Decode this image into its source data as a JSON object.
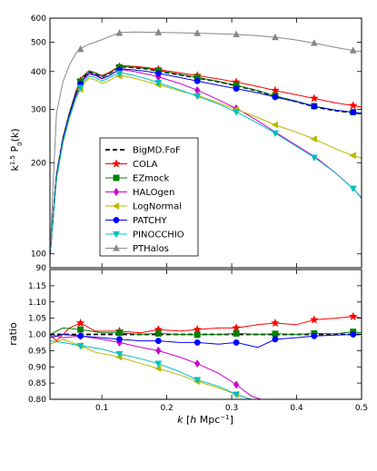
{
  "chart_data": [
    {
      "type": "line",
      "panel": "top",
      "title": "",
      "ylabel": "k^{1.5} P_0(k)",
      "xlabel": "",
      "xlim": [
        0.02,
        0.5
      ],
      "ylim": [
        90,
        600
      ],
      "yscale": "log",
      "yticks": [
        "90",
        "100",
        "200",
        "300",
        "400",
        "500",
        "600"
      ],
      "legend": {
        "placement": "lower-left",
        "entries": [
          "BigMD.FoF",
          "COLA",
          "EZmock",
          "HALOgen",
          "LogNormal",
          "PATCHY",
          "PINOCCHIO",
          "PTHalos"
        ]
      },
      "series": [
        {
          "name": "BigMD.FoF",
          "color": "#000000",
          "dash": "dashed",
          "marker": "none",
          "x": [
            0.02,
            0.03,
            0.04,
            0.05,
            0.06,
            0.07,
            0.08,
            0.09,
            0.1,
            0.11,
            0.12,
            0.13,
            0.15,
            0.17,
            0.19,
            0.22,
            0.25,
            0.28,
            0.31,
            0.34,
            0.37,
            0.4,
            0.43,
            0.46,
            0.49,
            0.5
          ],
          "y": [
            100,
            180,
            240,
            290,
            340,
            380,
            400,
            395,
            385,
            392,
            405,
            415,
            412,
            408,
            400,
            390,
            380,
            370,
            358,
            345,
            330,
            318,
            305,
            297,
            292,
            290
          ]
        },
        {
          "name": "COLA",
          "color": "#ff0000",
          "dash": "solid",
          "marker": "star",
          "x": [
            0.02,
            0.03,
            0.04,
            0.05,
            0.06,
            0.07,
            0.08,
            0.09,
            0.1,
            0.11,
            0.12,
            0.13,
            0.15,
            0.17,
            0.19,
            0.22,
            0.25,
            0.28,
            0.31,
            0.34,
            0.37,
            0.4,
            0.43,
            0.46,
            0.49,
            0.5
          ],
          "y": [
            100,
            182,
            242,
            292,
            345,
            385,
            402,
            396,
            388,
            396,
            408,
            418,
            416,
            412,
            405,
            396,
            387,
            378,
            368,
            357,
            345,
            335,
            325,
            315,
            308,
            305
          ],
          "marker_x": [
            0.067,
            0.127,
            0.187,
            0.247,
            0.307,
            0.367,
            0.427,
            0.487
          ]
        },
        {
          "name": "EZmock",
          "color": "#008000",
          "dash": "solid",
          "marker": "square",
          "x": [
            0.02,
            0.03,
            0.04,
            0.05,
            0.06,
            0.07,
            0.08,
            0.09,
            0.1,
            0.11,
            0.12,
            0.13,
            0.15,
            0.17,
            0.19,
            0.22,
            0.25,
            0.28,
            0.31,
            0.34,
            0.37,
            0.4,
            0.43,
            0.46,
            0.49,
            0.5
          ],
          "y": [
            100,
            181,
            241,
            291,
            342,
            383,
            402,
            396,
            386,
            393,
            406,
            416,
            413,
            409,
            402,
            392,
            381,
            371,
            359,
            346,
            331,
            319,
            306,
            298,
            293,
            291
          ],
          "marker_x": [
            0.067,
            0.127,
            0.187,
            0.247,
            0.307,
            0.367,
            0.427,
            0.487
          ]
        },
        {
          "name": "HALOgen",
          "color": "#cc00cc",
          "dash": "solid",
          "marker": "diamond",
          "x": [
            0.02,
            0.03,
            0.04,
            0.05,
            0.06,
            0.07,
            0.08,
            0.09,
            0.1,
            0.11,
            0.12,
            0.13,
            0.15,
            0.17,
            0.19,
            0.22,
            0.25,
            0.28,
            0.31,
            0.34,
            0.37,
            0.4,
            0.43,
            0.46,
            0.49,
            0.5
          ],
          "y": [
            100,
            178,
            237,
            285,
            333,
            372,
            392,
            388,
            378,
            386,
            398,
            406,
            400,
            392,
            382,
            365,
            345,
            322,
            300,
            275,
            250,
            228,
            208,
            185,
            162,
            153
          ],
          "marker_x": [
            0.067,
            0.127,
            0.187,
            0.247,
            0.307
          ]
        },
        {
          "name": "LogNormal",
          "color": "#b8b800",
          "dash": "solid",
          "marker": "triangle-left",
          "x": [
            0.02,
            0.03,
            0.04,
            0.05,
            0.06,
            0.07,
            0.08,
            0.09,
            0.1,
            0.11,
            0.12,
            0.13,
            0.15,
            0.17,
            0.19,
            0.22,
            0.25,
            0.28,
            0.31,
            0.34,
            0.37,
            0.4,
            0.43,
            0.46,
            0.49,
            0.5
          ],
          "y": [
            100,
            176,
            232,
            280,
            325,
            360,
            380,
            375,
            365,
            372,
            383,
            388,
            380,
            370,
            360,
            345,
            332,
            315,
            298,
            282,
            265,
            252,
            238,
            222,
            210,
            207
          ],
          "marker_x": [
            0.067,
            0.127,
            0.187,
            0.247,
            0.307,
            0.367,
            0.427,
            0.487
          ]
        },
        {
          "name": "PATCHY",
          "color": "#0000ff",
          "dash": "solid",
          "marker": "circle",
          "x": [
            0.02,
            0.03,
            0.04,
            0.05,
            0.06,
            0.07,
            0.08,
            0.09,
            0.1,
            0.11,
            0.12,
            0.13,
            0.15,
            0.17,
            0.19,
            0.22,
            0.25,
            0.28,
            0.31,
            0.34,
            0.37,
            0.4,
            0.43,
            0.46,
            0.49,
            0.5
          ],
          "y": [
            100,
            179,
            239,
            288,
            337,
            375,
            396,
            390,
            380,
            386,
            398,
            408,
            405,
            400,
            393,
            382,
            371,
            360,
            350,
            340,
            328,
            318,
            306,
            298,
            293,
            291
          ],
          "marker_x": [
            0.067,
            0.127,
            0.187,
            0.247,
            0.307,
            0.367,
            0.427,
            0.487
          ]
        },
        {
          "name": "PINOCCHIO",
          "color": "#00bfbf",
          "dash": "solid",
          "marker": "triangle-down",
          "x": [
            0.02,
            0.03,
            0.04,
            0.05,
            0.06,
            0.07,
            0.08,
            0.09,
            0.1,
            0.11,
            0.12,
            0.13,
            0.15,
            0.17,
            0.19,
            0.22,
            0.25,
            0.28,
            0.31,
            0.34,
            0.37,
            0.4,
            0.43,
            0.46,
            0.49,
            0.5
          ],
          "y": [
            100,
            177,
            234,
            282,
            328,
            365,
            386,
            382,
            372,
            380,
            390,
            396,
            388,
            378,
            365,
            348,
            330,
            312,
            292,
            270,
            248,
            226,
            206,
            185,
            162,
            152
          ],
          "marker_x": [
            0.067,
            0.127,
            0.187,
            0.247,
            0.307,
            0.367,
            0.427,
            0.487
          ]
        },
        {
          "name": "PTHalos",
          "color": "#888888",
          "dash": "solid",
          "marker": "triangle-up",
          "x": [
            0.02,
            0.03,
            0.04,
            0.05,
            0.06,
            0.07,
            0.08,
            0.09,
            0.1,
            0.11,
            0.12,
            0.13,
            0.15,
            0.17,
            0.19,
            0.22,
            0.25,
            0.28,
            0.31,
            0.34,
            0.37,
            0.4,
            0.43,
            0.46,
            0.49,
            0.5
          ],
          "y": [
            100,
            290,
            370,
            420,
            460,
            480,
            492,
            500,
            510,
            520,
            530,
            538,
            540,
            539,
            538,
            537,
            535,
            533,
            530,
            525,
            518,
            508,
            495,
            480,
            468,
            465
          ],
          "marker_x": [
            0.067,
            0.127,
            0.187,
            0.247,
            0.307,
            0.367,
            0.427,
            0.487
          ]
        }
      ]
    },
    {
      "type": "line",
      "panel": "bottom",
      "title": "",
      "ylabel": "ratio",
      "xlabel": "k [h Mpc^{-1}]",
      "xlim": [
        0.02,
        0.5
      ],
      "ylim": [
        0.8,
        1.2
      ],
      "yticks": [
        "0.80",
        "0.85",
        "0.90",
        "0.95",
        "1.00",
        "1.05",
        "1.10",
        "1.15"
      ],
      "xticks": [
        "0.1",
        "0.2",
        "0.3",
        "0.4",
        "0.5"
      ],
      "series": [
        {
          "name": "BigMD.FoF",
          "color": "#000000",
          "dash": "dashed",
          "marker": "none",
          "x": [
            0.02,
            0.5
          ],
          "y": [
            1.0,
            1.0
          ]
        },
        {
          "name": "COLA",
          "color": "#ff0000",
          "dash": "solid",
          "marker": "star",
          "x": [
            0.02,
            0.03,
            0.05,
            0.067,
            0.09,
            0.127,
            0.16,
            0.187,
            0.22,
            0.247,
            0.28,
            0.307,
            0.34,
            0.367,
            0.4,
            0.427,
            0.46,
            0.487,
            0.5
          ],
          "y": [
            1.0,
            0.98,
            1.02,
            1.035,
            1.01,
            1.01,
            1.005,
            1.015,
            1.01,
            1.015,
            1.02,
            1.02,
            1.03,
            1.035,
            1.03,
            1.045,
            1.05,
            1.055,
            1.05
          ],
          "marker_x": [
            0.067,
            0.127,
            0.187,
            0.247,
            0.307,
            0.367,
            0.427,
            0.487
          ]
        },
        {
          "name": "EZmock",
          "color": "#008000",
          "dash": "solid",
          "marker": "square",
          "x": [
            0.02,
            0.04,
            0.067,
            0.1,
            0.127,
            0.16,
            0.187,
            0.22,
            0.247,
            0.28,
            0.307,
            0.34,
            0.367,
            0.4,
            0.427,
            0.46,
            0.487,
            0.5
          ],
          "y": [
            1.0,
            1.02,
            1.015,
            1.005,
            1.005,
            1.0,
            1.003,
            1.0,
            0.999,
            1.0,
            1.003,
            1.0,
            1.002,
            1.0,
            1.003,
            1.002,
            1.008,
            1.005
          ],
          "marker_x": [
            0.067,
            0.127,
            0.187,
            0.247,
            0.307,
            0.367,
            0.427,
            0.487
          ]
        },
        {
          "name": "HALOgen",
          "color": "#cc00cc",
          "dash": "solid",
          "marker": "diamond",
          "x": [
            0.02,
            0.04,
            0.067,
            0.1,
            0.127,
            0.16,
            0.187,
            0.22,
            0.247,
            0.28,
            0.307,
            0.33,
            0.345
          ],
          "y": [
            1.0,
            0.99,
            0.995,
            0.985,
            0.975,
            0.96,
            0.95,
            0.93,
            0.91,
            0.88,
            0.845,
            0.81,
            0.8
          ],
          "marker_x": [
            0.067,
            0.127,
            0.187,
            0.247,
            0.307
          ]
        },
        {
          "name": "LogNormal",
          "color": "#b8b800",
          "dash": "solid",
          "marker": "triangle-left",
          "x": [
            0.02,
            0.04,
            0.067,
            0.09,
            0.127,
            0.16,
            0.187,
            0.22,
            0.247,
            0.28,
            0.307,
            0.33
          ],
          "y": [
            0.97,
            0.985,
            0.965,
            0.945,
            0.93,
            0.91,
            0.895,
            0.875,
            0.855,
            0.835,
            0.815,
            0.8
          ],
          "marker_x": [
            0.067,
            0.127,
            0.187,
            0.247,
            0.307
          ]
        },
        {
          "name": "PATCHY",
          "color": "#0000ff",
          "dash": "solid",
          "marker": "circle",
          "x": [
            0.02,
            0.04,
            0.067,
            0.1,
            0.127,
            0.16,
            0.187,
            0.22,
            0.247,
            0.28,
            0.307,
            0.34,
            0.367,
            0.4,
            0.427,
            0.46,
            0.487,
            0.5
          ],
          "y": [
            0.99,
            1.0,
            0.995,
            0.99,
            0.985,
            0.98,
            0.98,
            0.975,
            0.975,
            0.97,
            0.975,
            0.96,
            0.985,
            0.99,
            0.995,
            0.998,
            1.0,
            1.0
          ],
          "marker_x": [
            0.067,
            0.127,
            0.187,
            0.247,
            0.307,
            0.367,
            0.427,
            0.487
          ]
        },
        {
          "name": "PINOCCHIO",
          "color": "#00bfbf",
          "dash": "solid",
          "marker": "triangle-down",
          "x": [
            0.02,
            0.04,
            0.067,
            0.1,
            0.127,
            0.16,
            0.187,
            0.22,
            0.247,
            0.28,
            0.307,
            0.33,
            0.345
          ],
          "y": [
            0.98,
            0.975,
            0.965,
            0.955,
            0.94,
            0.925,
            0.91,
            0.885,
            0.86,
            0.84,
            0.815,
            0.8,
            0.79
          ],
          "marker_x": [
            0.067,
            0.127,
            0.187,
            0.247,
            0.307
          ]
        }
      ]
    }
  ]
}
